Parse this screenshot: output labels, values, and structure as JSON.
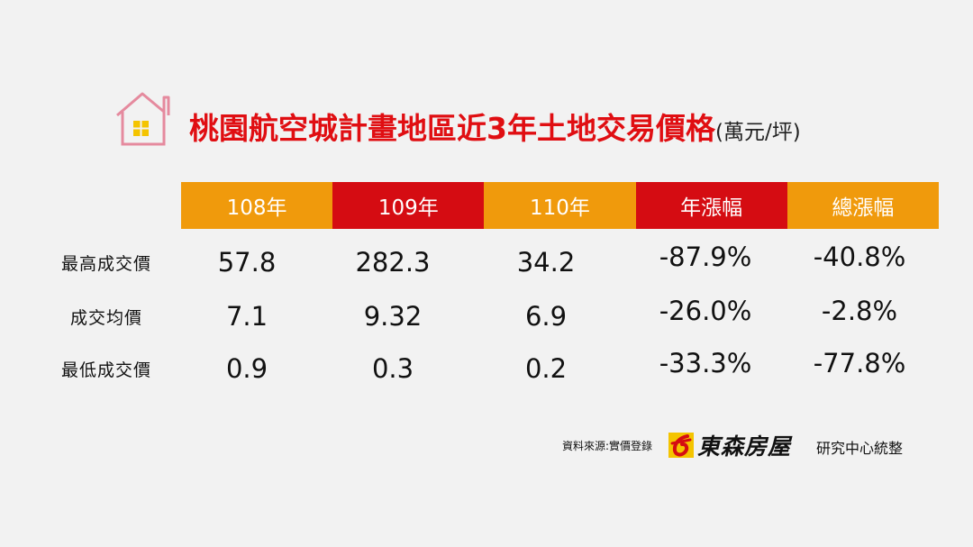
{
  "title": {
    "main": "桃園航空城計畫地區近3年土地交易價格",
    "unit": "(萬元/坪)"
  },
  "colors": {
    "orange": "#f09a0c",
    "red": "#d50c12",
    "title_red": "#e00e12",
    "house_pink": "#e58a9e",
    "window_yellow": "#f4c400"
  },
  "icons": {
    "title_icon": "house-icon",
    "logo_icon": "brand-logo-icon"
  },
  "chart_data": {
    "type": "table",
    "columns": [
      "108年",
      "109年",
      "110年",
      "年漲幅",
      "總漲幅"
    ],
    "column_colors": [
      "orange",
      "red",
      "orange",
      "red",
      "orange"
    ],
    "rows": [
      {
        "label": "最高成交價",
        "values": [
          "57.8",
          "282.3",
          "34.2",
          "-87.9%",
          "-40.8%"
        ]
      },
      {
        "label": "成交均價",
        "values": [
          "7.1",
          "9.32",
          "6.9",
          "-26.0%",
          "-2.8%"
        ]
      },
      {
        "label": "最低成交價",
        "values": [
          "0.9",
          "0.3",
          "0.2",
          "-33.3%",
          "-77.8%"
        ]
      }
    ]
  },
  "footer": {
    "source": "資料來源:實價登錄",
    "logo_text": "東森房屋",
    "org": "研究中心統整"
  }
}
